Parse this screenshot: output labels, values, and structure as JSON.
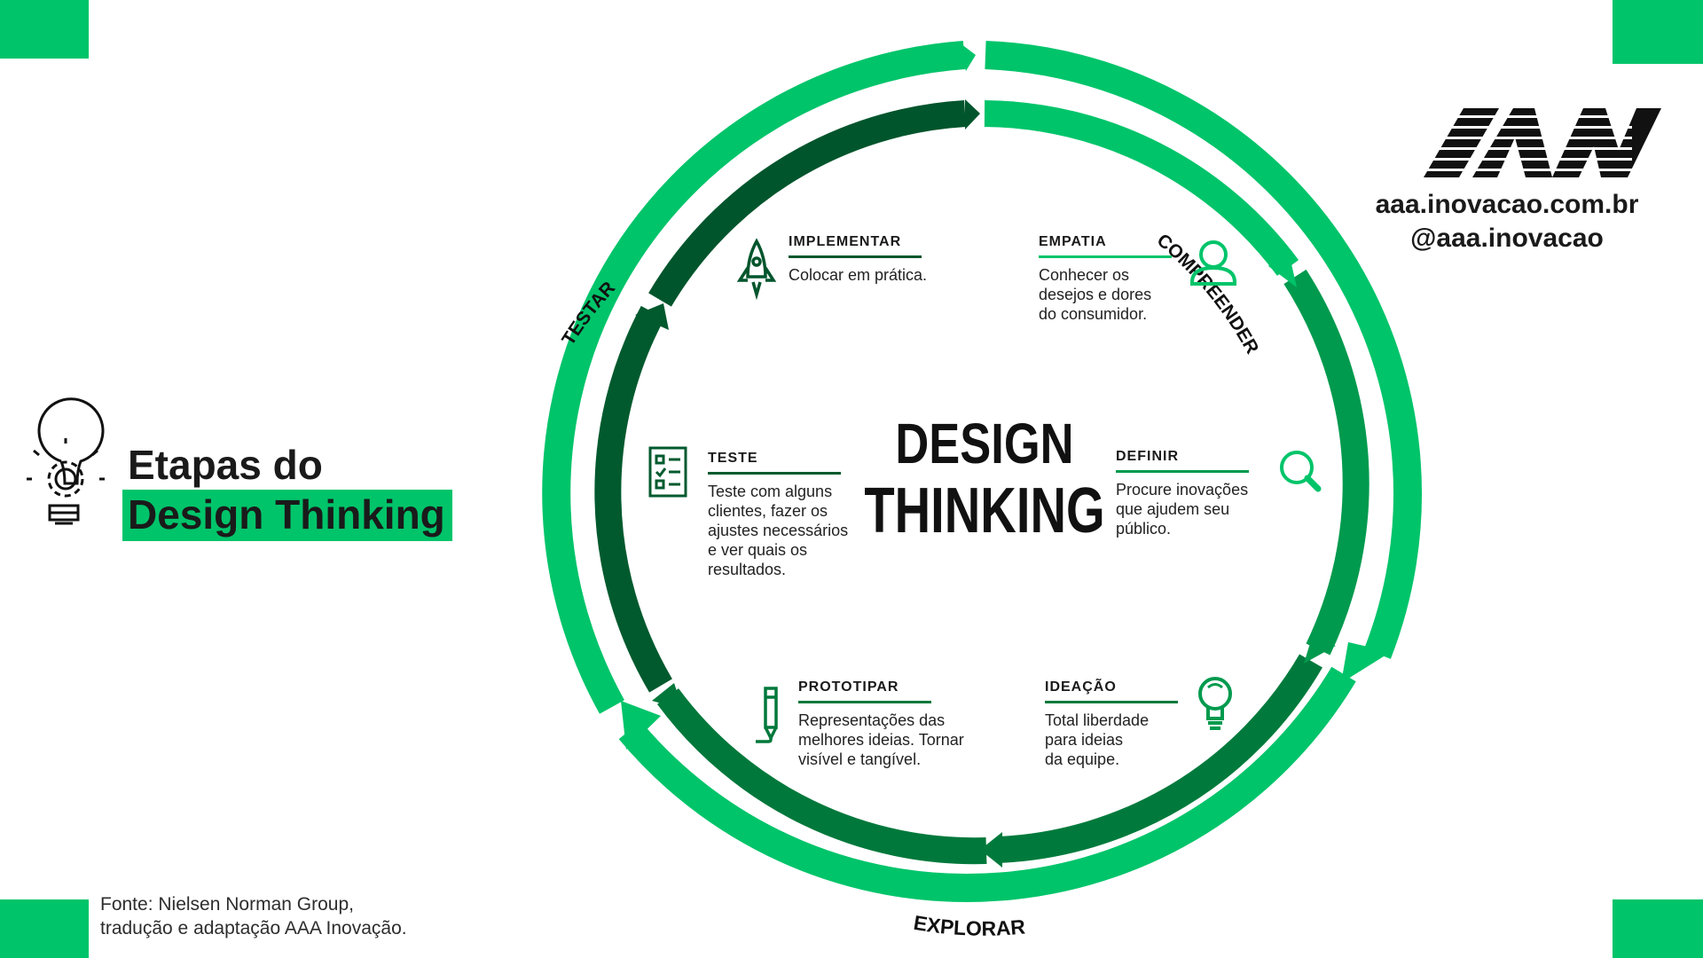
{
  "title": {
    "line1": "Etapas do",
    "line2": "Design Thinking"
  },
  "center": {
    "line1": "DESIGN",
    "line2": "THINKING"
  },
  "brand": {
    "url": "aaa.inovacao.com.br",
    "handle": "@aaa.inovacao",
    "logo_text": "AAA"
  },
  "source": {
    "line1": "Fonte: Nielsen Norman Group,",
    "line2": "tradução e adaptação AAA Inovação."
  },
  "outer_labels": {
    "compreender": "COMPREENDER",
    "explorar": "EXPLORAR",
    "testar": "TESTAR"
  },
  "stages": [
    {
      "title": "EMPATIA",
      "desc": "Conhecer os\ndesejos e dores\ndo consumidor.",
      "icon": "person-icon"
    },
    {
      "title": "DEFINIR",
      "desc": "Procure inovações\nque ajudem seu\npúblico.",
      "icon": "magnifier-icon"
    },
    {
      "title": "IDEAÇÃO",
      "desc": "Total liberdade\npara ideias\nda equipe.",
      "icon": "lightbulb-icon"
    },
    {
      "title": "PROTOTIPAR",
      "desc": "Representações das\nmelhores ideias. Tornar\nvisível e tangível.",
      "icon": "pencil-icon"
    },
    {
      "title": "TESTE",
      "desc": "Teste com alguns\nclientes, fazer os\najustes necessários\ne ver quais os\nresultados.",
      "icon": "checklist-icon"
    },
    {
      "title": "IMPLEMENTAR",
      "desc": "Colocar em prática.",
      "icon": "rocket-icon"
    }
  ],
  "colors": {
    "bright_green": "#00c46a",
    "mid_green": "#009a4e",
    "dark_green": "#00552c",
    "black": "#111111"
  }
}
